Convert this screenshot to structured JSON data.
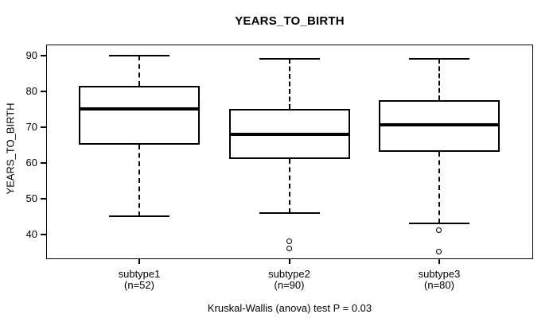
{
  "chart_data": {
    "type": "boxplot",
    "title": "YEARS_TO_BIRTH",
    "ylabel": "YEARS_TO_BIRTH",
    "xlabel": "",
    "footnote": "Kruskal-Wallis (anova) test P = 0.03",
    "ylim": [
      33,
      93
    ],
    "yticks": [
      40,
      50,
      60,
      70,
      80,
      90
    ],
    "grid": false,
    "groups": [
      {
        "label": "subtype1",
        "sublabel": "(n=52)",
        "n": 52,
        "whisker_low": 45,
        "q1": 65,
        "median": 75,
        "q3": 81.5,
        "whisker_high": 90,
        "outliers": []
      },
      {
        "label": "subtype2",
        "sublabel": "(n=90)",
        "n": 90,
        "whisker_low": 46,
        "q1": 61,
        "median": 68,
        "q3": 75,
        "whisker_high": 89,
        "outliers": [
          38,
          36
        ]
      },
      {
        "label": "subtype3",
        "sublabel": "(n=80)",
        "n": 80,
        "whisker_low": 43,
        "q1": 63,
        "median": 70.5,
        "q3": 77.5,
        "whisker_high": 89,
        "outliers": [
          41,
          35
        ]
      }
    ]
  }
}
